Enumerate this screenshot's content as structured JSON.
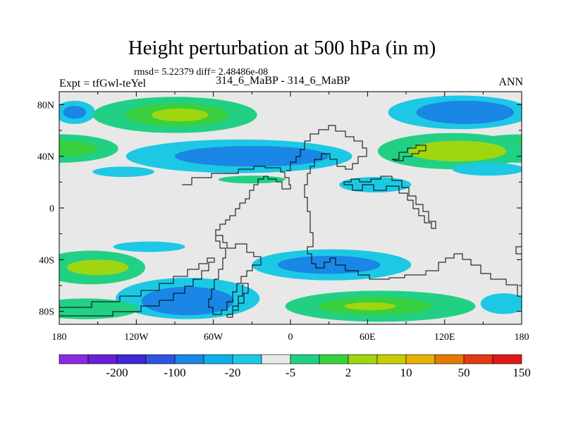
{
  "chart_data": {
    "type": "heatmap",
    "title": "Height perturbation at 500 hPa (in m)",
    "stats_line": "rmsd= 5.22379 diff= 2.48486e-08",
    "left_label": "Expt = tfGwl-teYel",
    "center_label": "314_6_MaBP - 314_6_MaBP",
    "right_label": "ANN",
    "xlim": [
      -180,
      180
    ],
    "ylim": [
      -90,
      90
    ],
    "x_ticks": [
      {
        "value": -180,
        "label": "180"
      },
      {
        "value": -120,
        "label": "120W"
      },
      {
        "value": -60,
        "label": "60W"
      },
      {
        "value": 0,
        "label": "0"
      },
      {
        "value": 60,
        "label": "60E"
      },
      {
        "value": 120,
        "label": "120E"
      },
      {
        "value": 180,
        "label": "180"
      }
    ],
    "y_ticks": [
      {
        "value": 80,
        "label": "80N"
      },
      {
        "value": 40,
        "label": "40N"
      },
      {
        "value": 0,
        "label": "0"
      },
      {
        "value": -40,
        "label": "40S"
      },
      {
        "value": -80,
        "label": "80S"
      }
    ],
    "colorbar": {
      "colors": [
        "#8a2be2",
        "#6a1ed8",
        "#3f28d6",
        "#2e54e0",
        "#1a86e6",
        "#0fb0e8",
        "#1dc8e4",
        "#e8e8e8",
        "#22d084",
        "#39d040",
        "#9fd610",
        "#c8cc00",
        "#e6b000",
        "#e47a00",
        "#e03a10",
        "#e01818"
      ],
      "labels": [
        {
          "after_index": 1,
          "text": "-200"
        },
        {
          "after_index": 3,
          "text": "-100"
        },
        {
          "after_index": 5,
          "text": "-20"
        },
        {
          "after_index": 7,
          "text": "-5"
        },
        {
          "after_index": 9,
          "text": "2"
        },
        {
          "after_index": 11,
          "text": "10"
        },
        {
          "after_index": 13,
          "text": "50"
        },
        {
          "after_index": 15,
          "text": "150"
        }
      ]
    },
    "regions": [
      {
        "lon": -168,
        "lat": 74,
        "rx": 16,
        "ry": 9,
        "level": "-5"
      },
      {
        "lon": -168,
        "lat": 74,
        "rx": 9,
        "ry": 5,
        "level": "-20"
      },
      {
        "lon": -90,
        "lat": 72,
        "rx": 64,
        "ry": 14,
        "level": "2"
      },
      {
        "lon": -88,
        "lat": 72,
        "rx": 40,
        "ry": 9,
        "level": "10"
      },
      {
        "lon": -86,
        "lat": 72,
        "rx": 22,
        "ry": 5,
        "level": "20"
      },
      {
        "lon": 132,
        "lat": 74,
        "rx": 56,
        "ry": 13,
        "level": "-5"
      },
      {
        "lon": 136,
        "lat": 74,
        "rx": 38,
        "ry": 9,
        "level": "-20"
      },
      {
        "lon": -180,
        "lat": 46,
        "rx": 46,
        "ry": 11,
        "level": "2"
      },
      {
        "lon": -180,
        "lat": 46,
        "rx": 30,
        "ry": 6,
        "level": "10"
      },
      {
        "lon": -40,
        "lat": 40,
        "rx": 88,
        "ry": 13,
        "level": "-5"
      },
      {
        "lon": -30,
        "lat": 40,
        "rx": 60,
        "ry": 8,
        "level": "-20"
      },
      {
        "lon": -130,
        "lat": 28,
        "rx": 24,
        "ry": 4,
        "level": "-5"
      },
      {
        "lon": -30,
        "lat": 22,
        "rx": 26,
        "ry": 3,
        "level": "2"
      },
      {
        "lon": 126,
        "lat": 44,
        "rx": 58,
        "ry": 14,
        "level": "2"
      },
      {
        "lon": 130,
        "lat": 44,
        "rx": 38,
        "ry": 8,
        "level": "20"
      },
      {
        "lon": 66,
        "lat": 18,
        "rx": 28,
        "ry": 6,
        "level": "-5"
      },
      {
        "lon": 154,
        "lat": 30,
        "rx": 28,
        "ry": 5,
        "level": "-5"
      },
      {
        "lon": -110,
        "lat": -30,
        "rx": 28,
        "ry": 4,
        "level": "-5"
      },
      {
        "lon": -155,
        "lat": -46,
        "rx": 42,
        "ry": 13,
        "level": "2"
      },
      {
        "lon": -150,
        "lat": -46,
        "rx": 24,
        "ry": 6,
        "level": "20"
      },
      {
        "lon": 32,
        "lat": -44,
        "rx": 62,
        "ry": 12,
        "level": "-5"
      },
      {
        "lon": 30,
        "lat": -44,
        "rx": 40,
        "ry": 7,
        "level": "-20"
      },
      {
        "lon": -80,
        "lat": -70,
        "rx": 56,
        "ry": 16,
        "level": "-5"
      },
      {
        "lon": -80,
        "lat": -72,
        "rx": 36,
        "ry": 11,
        "level": "-20"
      },
      {
        "lon": -160,
        "lat": -78,
        "rx": 42,
        "ry": 8,
        "level": "2"
      },
      {
        "lon": 70,
        "lat": -76,
        "rx": 74,
        "ry": 12,
        "level": "2"
      },
      {
        "lon": 66,
        "lat": -76,
        "rx": 44,
        "ry": 7,
        "level": "10"
      },
      {
        "lon": 62,
        "lat": -76,
        "rx": 20,
        "ry": 3,
        "level": "20"
      },
      {
        "lon": 166,
        "lat": -74,
        "rx": 18,
        "ry": 8,
        "level": "-5"
      }
    ]
  }
}
